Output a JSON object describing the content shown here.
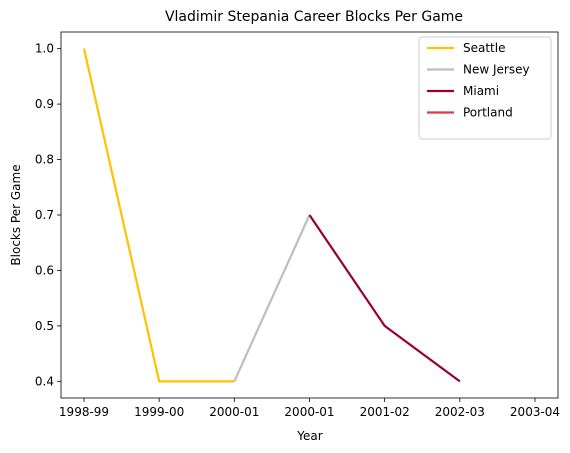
{
  "chart_data": {
    "type": "line",
    "title": "Vladimir Stepania Career Blocks Per Game",
    "xlabel": "Year",
    "ylabel": "Blocks Per Game",
    "categories": [
      "1998-99",
      "1999-00",
      "2000-01",
      "2000-01",
      "2001-02",
      "2002-03",
      "2003-04"
    ],
    "ylim": [
      0.37,
      1.03
    ],
    "yticks": [
      "0.4",
      "0.5",
      "0.6",
      "0.7",
      "0.8",
      "0.9",
      "1.0"
    ],
    "grid": false,
    "legend_position": "top-right",
    "series": [
      {
        "name": "Seattle",
        "color": "#FFC200",
        "points": [
          [
            0,
            1.0
          ],
          [
            1,
            0.4
          ],
          [
            2,
            0.4
          ]
        ]
      },
      {
        "name": "New Jersey",
        "color": "#BEBEBE",
        "points": [
          [
            2,
            0.4
          ],
          [
            3,
            0.7
          ]
        ]
      },
      {
        "name": "Miami",
        "color": "#98002E",
        "points": [
          [
            3,
            0.7
          ],
          [
            4,
            0.5
          ],
          [
            5,
            0.4
          ]
        ]
      },
      {
        "name": "Portland",
        "color": "#E03A3E",
        "points": []
      }
    ]
  }
}
